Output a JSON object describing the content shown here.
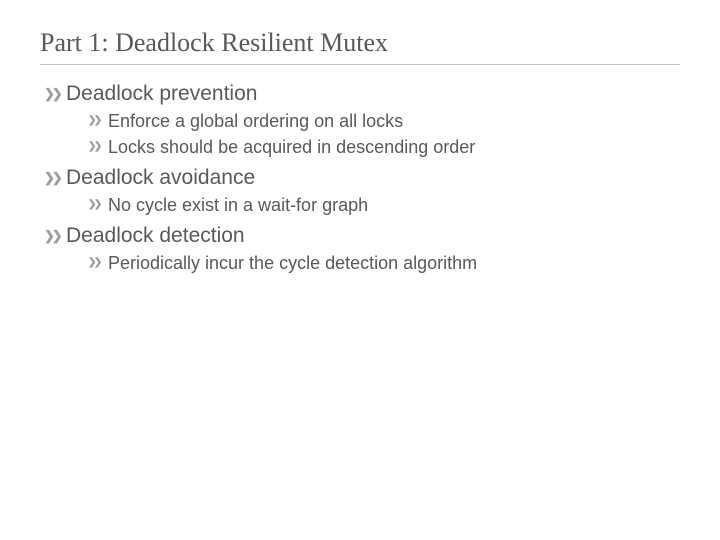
{
  "title": "Part 1: Deadlock Resilient Mutex",
  "colors": {
    "title_text": "#595959",
    "body_text": "#595959",
    "bullet_glyph": "#9e9e9e",
    "title_underline": "#bfbfbf",
    "background": "#ffffff"
  },
  "typography": {
    "title_font": "Georgia, serif",
    "title_fontsize_pt": 20,
    "body_font": "Arial, sans-serif",
    "l1_fontsize_pt": 16,
    "l2_fontsize_pt": 14
  },
  "bullet_glyph": "❯❯",
  "items": [
    {
      "text": "Deadlock prevention",
      "children": [
        {
          "text": "Enforce a global ordering on all locks"
        },
        {
          "text": "Locks should be acquired in descending order"
        }
      ]
    },
    {
      "text": "Deadlock avoidance",
      "children": [
        {
          "text": "No cycle exist in a wait-for graph"
        }
      ]
    },
    {
      "text": "Deadlock detection",
      "children": [
        {
          "text": "Periodically incur the cycle detection algorithm"
        }
      ]
    }
  ]
}
